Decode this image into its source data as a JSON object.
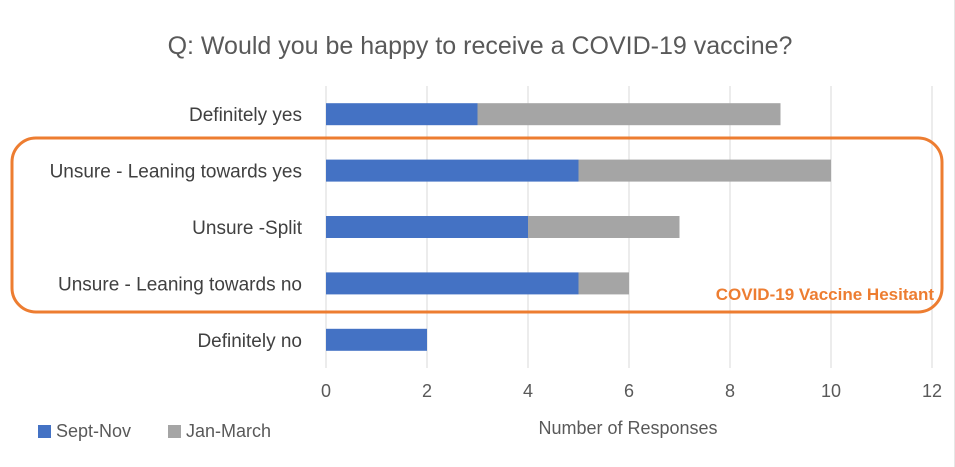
{
  "chart_data": {
    "type": "bar",
    "orientation": "horizontal",
    "stacked": true,
    "title": "Q: Would you be happy to receive a COVID-19 vaccine?",
    "xlabel": "Number of Responses",
    "ylabel": "",
    "categories": [
      "Definitely yes",
      "Unsure - Leaning towards yes",
      "Unsure -Split",
      "Unsure - Leaning towards no",
      "Definitely no"
    ],
    "series": [
      {
        "name": "Sept-Nov",
        "color": "#4472c4",
        "values": [
          3,
          5,
          4,
          5,
          2
        ]
      },
      {
        "name": "Jan-March",
        "color": "#a5a5a5",
        "values": [
          6,
          5,
          3,
          1,
          0
        ]
      }
    ],
    "xlim": [
      0,
      12
    ],
    "xticks": [
      0,
      2,
      4,
      6,
      8,
      10,
      12
    ],
    "grid": "vertical",
    "legend": "bottom-left",
    "annotation": {
      "text": "COVID-19 Vaccine Hesitant",
      "color": "#ed7d31",
      "encloses": [
        "Unsure - Leaning towards yes",
        "Unsure -Split",
        "Unsure - Leaning towards no"
      ]
    }
  }
}
